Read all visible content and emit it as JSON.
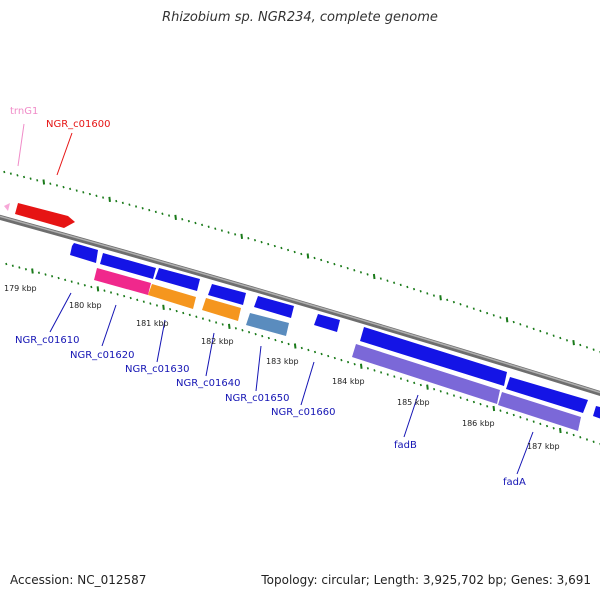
{
  "title": "Rhizobium sp. NGR234, complete genome",
  "footer": {
    "accession": "Accession: NC_012587",
    "summary": "Topology: circular; Length: 3,925,702 bp; Genes: 3,691"
  },
  "scale_labels": [
    "179 kbp",
    "180 kbp",
    "181 kbp",
    "182 kbp",
    "183 kbp",
    "184 kbp",
    "185 kbp",
    "186 kbp",
    "187 kbp"
  ],
  "colors": {
    "backbone": "#808080",
    "tick": "#1a7a1a",
    "cds_blue": "#1414e6",
    "trna_pink": "#f7a8d8",
    "red": "#e61414",
    "magenta": "#f0288c",
    "orange": "#f5961e",
    "steel": "#5a8cbe",
    "lavender": "#7b68d8"
  },
  "gene_labels": [
    {
      "id": "trnG1",
      "text": "trnG1",
      "color": "#f08cc8"
    },
    {
      "id": "NGR_c01600",
      "text": "NGR_c01600",
      "color": "#e61414"
    },
    {
      "id": "NGR_c01610",
      "text": "NGR_c01610",
      "color": "#1414b4"
    },
    {
      "id": "NGR_c01620",
      "text": "NGR_c01620",
      "color": "#1414b4"
    },
    {
      "id": "NGR_c01630",
      "text": "NGR_c01630",
      "color": "#1414b4"
    },
    {
      "id": "NGR_c01640",
      "text": "NGR_c01640",
      "color": "#1414b4"
    },
    {
      "id": "NGR_c01650",
      "text": "NGR_c01650",
      "color": "#1414b4"
    },
    {
      "id": "NGR_c01660",
      "text": "NGR_c01660",
      "color": "#1414b4"
    },
    {
      "id": "fadB",
      "text": "fadB",
      "color": "#1414b4"
    },
    {
      "id": "fadA",
      "text": "fadA",
      "color": "#1414b4"
    }
  ]
}
